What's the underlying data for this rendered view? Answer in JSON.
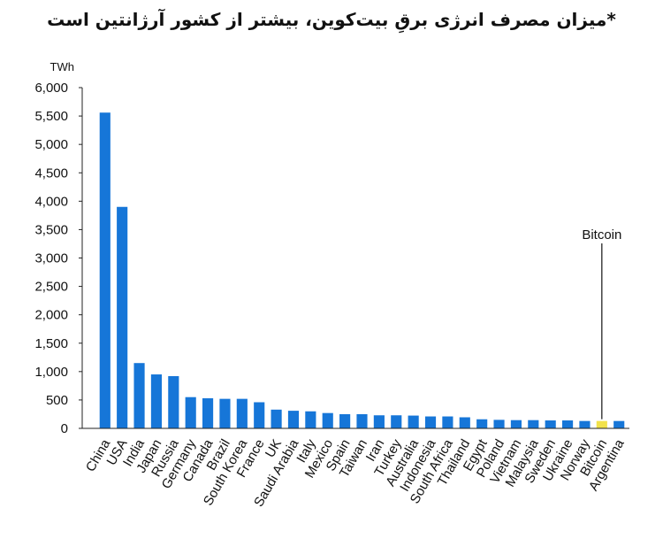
{
  "chart_data": {
    "type": "bar",
    "title": "*میزان مصرف انرژی برقِ بیت‌کوین، بیشتر از کشور آرژانتین است",
    "unit_label": "TWh",
    "ylim": [
      0,
      6000
    ],
    "yticks": [
      0,
      500,
      1000,
      1500,
      2000,
      2500,
      3000,
      3500,
      4000,
      4500,
      5000,
      5500,
      6000
    ],
    "ytick_labels": [
      "0",
      "500",
      "1,000",
      "1,500",
      "2,000",
      "2,500",
      "3,000",
      "3,500",
      "4,000",
      "4,500",
      "5,000",
      "5,500",
      "6,000"
    ],
    "grid": false,
    "categories": [
      "China",
      "USA",
      "India",
      "Japan",
      "Russia",
      "Germany",
      "Canada",
      "Brazil",
      "South Korea",
      "France",
      "UK",
      "Saudi Arabia",
      "Italy",
      "Mexico",
      "Spain",
      "Taiwan",
      "Iran",
      "Turkey",
      "Australia",
      "Indonesia",
      "South Africa",
      "Thailand",
      "Egypt",
      "Poland",
      "Vietnam",
      "Malaysia",
      "Sweden",
      "Ukraine",
      "Norway",
      "Bitcoin",
      "Argentina"
    ],
    "values": [
      5560,
      3900,
      1150,
      950,
      920,
      550,
      530,
      520,
      520,
      460,
      330,
      310,
      300,
      270,
      250,
      250,
      230,
      230,
      225,
      210,
      210,
      195,
      160,
      150,
      145,
      145,
      140,
      140,
      130,
      130,
      130
    ],
    "colors": {
      "bar": "#1676d8",
      "highlight": "#f2e24a",
      "axis": "#222222"
    },
    "highlight_category": "Bitcoin",
    "annotation": {
      "text": "Bitcoin",
      "target": "Bitcoin"
    }
  }
}
